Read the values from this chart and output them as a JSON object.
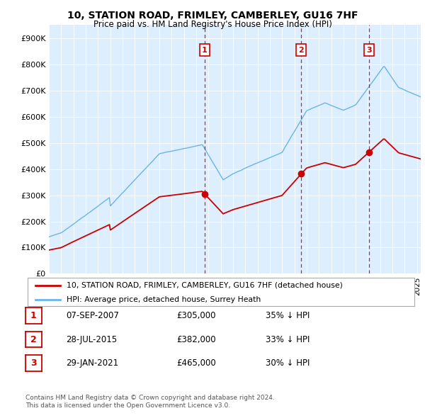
{
  "title": "10, STATION ROAD, FRIMLEY, CAMBERLEY, GU16 7HF",
  "subtitle": "Price paid vs. HM Land Registry's House Price Index (HPI)",
  "ylim": [
    0,
    950000
  ],
  "yticks": [
    0,
    100000,
    200000,
    300000,
    400000,
    500000,
    600000,
    700000,
    800000,
    900000
  ],
  "ytick_labels": [
    "£0",
    "£100K",
    "£200K",
    "£300K",
    "£400K",
    "£500K",
    "£600K",
    "£700K",
    "£800K",
    "£900K"
  ],
  "background_color": "#ffffff",
  "plot_bg_color": "#ddeeff",
  "legend_entry1": "10, STATION ROAD, FRIMLEY, CAMBERLEY, GU16 7HF (detached house)",
  "legend_entry2": "HPI: Average price, detached house, Surrey Heath",
  "transactions": [
    {
      "id": 1,
      "date": "07-SEP-2007",
      "price": "305,000",
      "pct": "35%",
      "x_year": 2007.7
    },
    {
      "id": 2,
      "date": "28-JUL-2015",
      "price": "382,000",
      "pct": "33%",
      "x_year": 2015.57
    },
    {
      "id": 3,
      "date": "29-JAN-2021",
      "price": "465,000",
      "pct": "30%",
      "x_year": 2021.08
    }
  ],
  "footnote1": "Contains HM Land Registry data © Crown copyright and database right 2024.",
  "footnote2": "This data is licensed under the Open Government Licence v3.0.",
  "hpi_color": "#6ab4e8",
  "price_color": "#cc0000",
  "vline_color": "#cc0000",
  "marker_color": "#cc0000",
  "num_color": "#cc0000",
  "num_box_color": "#cc0000",
  "xlim_left": 1995,
  "xlim_right": 2025.3
}
